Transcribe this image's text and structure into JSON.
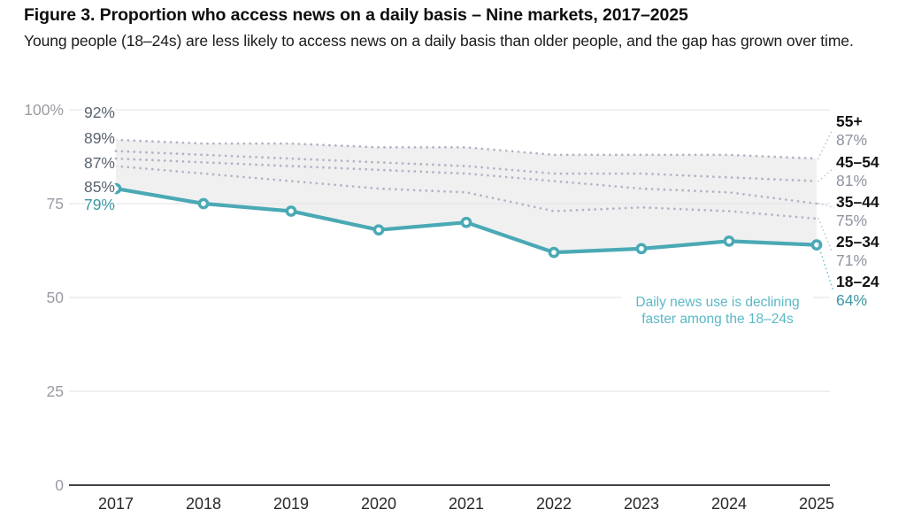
{
  "figure": {
    "title": "Figure 3. Proportion who access news on a daily basis – Nine markets, 2017–2025",
    "subtitle": "Young people (18–24s) are less likely to access news on a daily basis than older people, and the gap has grown over time."
  },
  "chart_data": {
    "type": "line",
    "x": [
      2017,
      2018,
      2019,
      2020,
      2021,
      2022,
      2023,
      2024,
      2025
    ],
    "series": [
      {
        "name": "55+",
        "style": "dotted",
        "values": [
          92,
          91,
          91,
          90,
          90,
          88,
          88,
          88,
          87
        ],
        "start_label": "92%",
        "end_label": "87%"
      },
      {
        "name": "45–54",
        "style": "dotted",
        "values": [
          89,
          88,
          87,
          86,
          85,
          83,
          83,
          82,
          81
        ],
        "start_label": "89%",
        "end_label": "81%"
      },
      {
        "name": "35–44",
        "style": "dotted",
        "values": [
          87,
          86,
          85,
          84,
          83,
          81,
          79,
          78,
          75
        ],
        "start_label": "87%",
        "end_label": "75%"
      },
      {
        "name": "25–34",
        "style": "dotted",
        "values": [
          85,
          83,
          81,
          79,
          78,
          73,
          74,
          73,
          71
        ],
        "start_label": "85%",
        "end_label": "71%"
      },
      {
        "name": "18–24",
        "style": "solid",
        "values": [
          79,
          75,
          73,
          68,
          70,
          62,
          63,
          65,
          64
        ],
        "start_label": "79%",
        "end_label": "64%"
      }
    ],
    "ylim": [
      0,
      100
    ],
    "yticks": [
      {
        "value": 100,
        "label": "100%"
      },
      {
        "value": 75,
        "label": "75"
      },
      {
        "value": 50,
        "label": "50"
      },
      {
        "value": 25,
        "label": "25"
      },
      {
        "value": 0,
        "label": "0"
      }
    ],
    "grid": "horizontal",
    "legend_position": "right",
    "annotation": {
      "lines": [
        "Daily news use is declining",
        "faster among the 18–24s"
      ]
    },
    "colors": {
      "highlight_line": "#4aa9b5",
      "highlight_text": "#3d97a4",
      "annotation_text": "#5bb9c7",
      "dotted_line": "#b2b5c3",
      "band_fill": "#f0f0f1",
      "grid_line": "#e7e7ea",
      "axis_line": "#414146",
      "y_tick_text": "#9b9ba3",
      "x_tick_text": "#28282c",
      "start_label_text": "#5b6470",
      "group_label_text": "#121214",
      "end_value_text": "#8f93a0",
      "leader_gray": "#c3c6cf",
      "leader_teal": "#73c3cf"
    }
  }
}
